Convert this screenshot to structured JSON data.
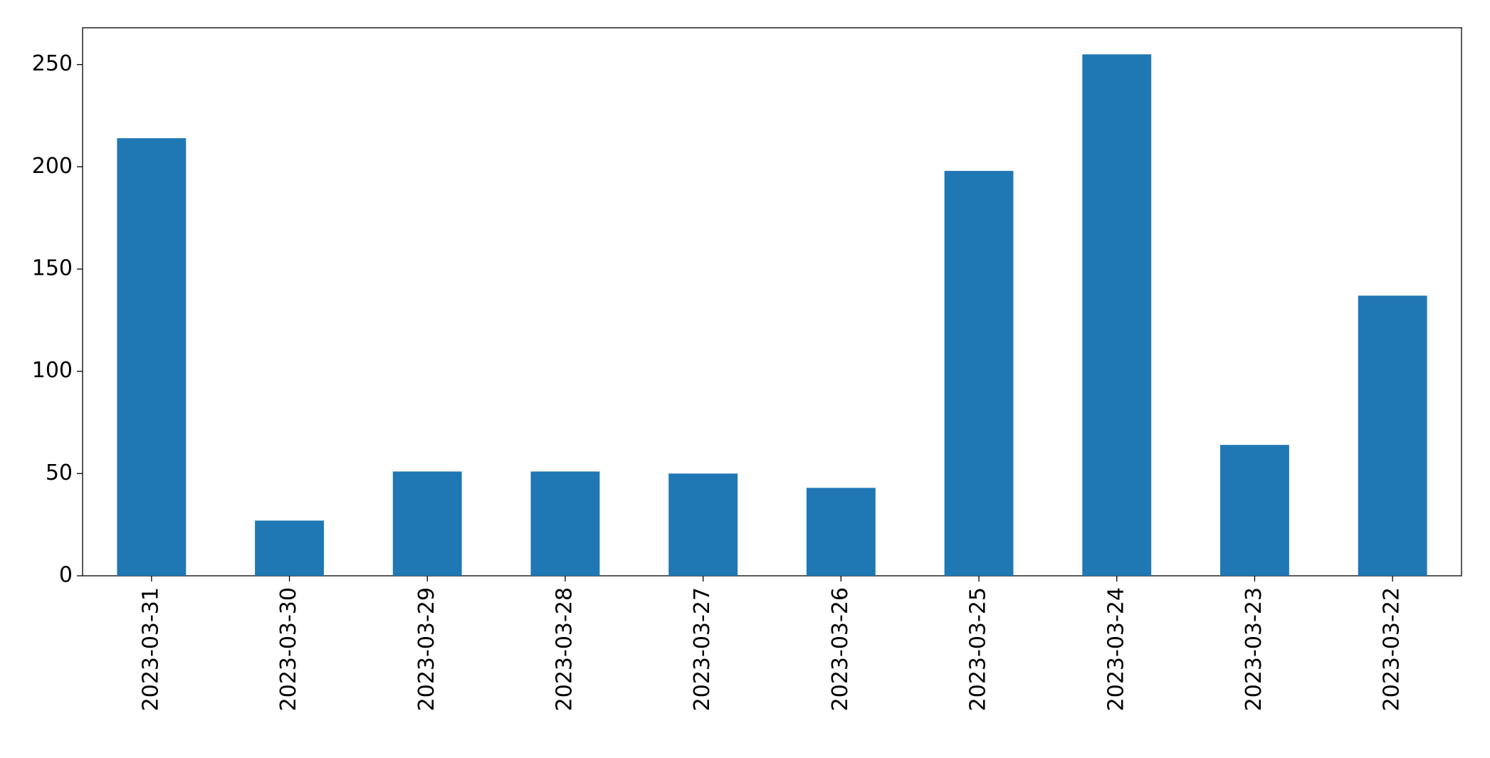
{
  "chart_data": {
    "type": "bar",
    "categories": [
      "2023-03-31",
      "2023-03-30",
      "2023-03-29",
      "2023-03-28",
      "2023-03-27",
      "2023-03-26",
      "2023-03-25",
      "2023-03-24",
      "2023-03-23",
      "2023-03-22"
    ],
    "values": [
      214,
      27,
      51,
      51,
      50,
      43,
      198,
      255,
      64,
      137
    ],
    "color": "#1f77b4",
    "ylim": [
      0,
      268
    ],
    "yticks": [
      0,
      50,
      100,
      150,
      200,
      250
    ],
    "grid": false
  }
}
